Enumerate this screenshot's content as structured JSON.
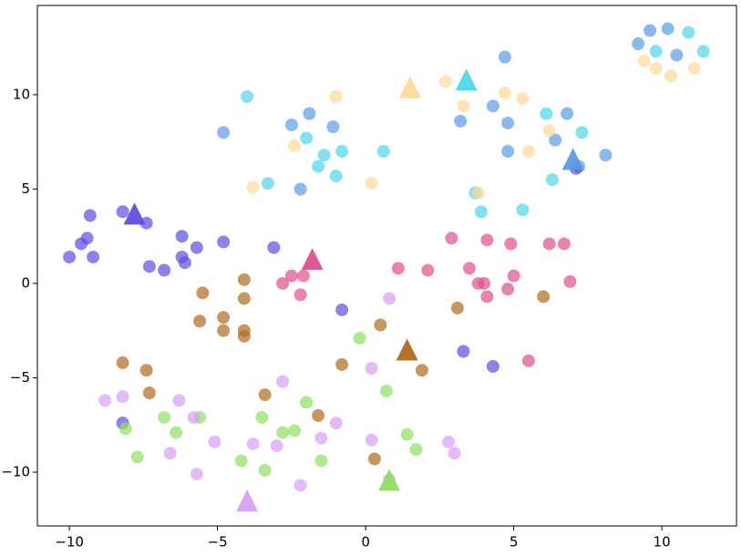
{
  "chart_data": {
    "type": "scatter",
    "xlim": [
      -11.08,
      12.52
    ],
    "ylim": [
      -12.85,
      14.73
    ],
    "xticks": [
      {
        "value": -10,
        "label": "−10"
      },
      {
        "value": -5,
        "label": "−5"
      },
      0,
      5,
      10
    ],
    "yticks": [
      {
        "value": -10,
        "label": "−10"
      },
      {
        "value": -5,
        "label": "−5"
      },
      0,
      5,
      10
    ],
    "series": [
      {
        "color": "#5b9be6",
        "centroid": [
          7.0,
          6.5
        ],
        "x": [
          9.6,
          9.2,
          10.2,
          10.5,
          4.7,
          -2.5,
          -1.9,
          -1.1,
          -4.8,
          3.2,
          4.3,
          4.8,
          6.8,
          6.4,
          4.8,
          8.1,
          7.2,
          -2.2
        ],
        "y": [
          13.4,
          12.7,
          13.5,
          12.1,
          12.0,
          8.4,
          9.0,
          8.3,
          8.0,
          8.6,
          9.4,
          8.5,
          9.0,
          7.6,
          7.0,
          6.8,
          6.2,
          5.0
        ]
      },
      {
        "color": "#4fd6e8",
        "centroid": [
          3.4,
          10.7
        ],
        "x": [
          -4.0,
          10.9,
          9.8,
          11.4,
          6.1,
          7.3,
          -2.0,
          -1.4,
          -0.8,
          0.6,
          -1.6,
          -1.0,
          -3.3,
          3.7,
          3.9,
          5.3,
          6.3
        ],
        "y": [
          9.9,
          13.3,
          12.3,
          12.3,
          9.0,
          8.0,
          7.7,
          6.8,
          7.0,
          7.0,
          6.2,
          5.7,
          5.3,
          4.8,
          3.8,
          3.9,
          5.5
        ]
      },
      {
        "color": "#ffd898",
        "centroid": [
          1.5,
          10.3
        ],
        "x": [
          9.4,
          9.8,
          10.3,
          11.1,
          2.7,
          4.7,
          5.3,
          -1.0,
          3.3,
          6.2,
          -2.4,
          5.5,
          -3.8,
          0.2,
          3.8
        ],
        "y": [
          11.8,
          11.4,
          11.0,
          11.4,
          10.7,
          10.1,
          9.8,
          9.9,
          9.4,
          8.1,
          7.3,
          7.0,
          5.1,
          5.3,
          4.8
        ]
      },
      {
        "color": "#5a4fe0",
        "centroid": [
          -7.8,
          3.6
        ],
        "x": [
          -10.0,
          -9.6,
          -9.4,
          -9.3,
          -9.2,
          -8.2,
          -7.4,
          -7.3,
          -6.8,
          -6.2,
          -6.2,
          -6.1,
          -5.7,
          -4.8,
          -3.1,
          -0.8,
          3.3,
          4.3,
          -8.2,
          7.1
        ],
        "y": [
          1.4,
          2.1,
          2.4,
          3.6,
          1.4,
          3.8,
          3.2,
          0.9,
          0.7,
          2.5,
          1.4,
          1.1,
          1.9,
          2.2,
          1.9,
          -1.4,
          -3.6,
          -4.4,
          -7.4,
          6.1
        ]
      },
      {
        "color": "#e04f8f",
        "centroid": [
          -1.8,
          1.2
        ],
        "x": [
          -2.8,
          -2.5,
          -2.1,
          -2.2,
          1.1,
          2.1,
          2.9,
          4.1,
          4.9,
          6.2,
          6.7,
          3.5,
          3.8,
          4.0,
          4.1,
          4.8,
          5.0,
          6.9,
          5.5
        ],
        "y": [
          0.0,
          0.4,
          0.4,
          -0.6,
          0.8,
          0.7,
          2.4,
          2.3,
          2.1,
          2.1,
          2.1,
          0.8,
          0.0,
          0.0,
          -0.7,
          -0.3,
          0.4,
          0.1,
          -4.1
        ]
      },
      {
        "color": "#b0691e",
        "centroid": [
          1.4,
          -3.6
        ],
        "x": [
          -4.1,
          -5.5,
          -4.1,
          -5.6,
          -4.8,
          -4.8,
          -4.1,
          -4.1,
          0.5,
          3.1,
          6.0,
          -8.2,
          -7.4,
          -7.3,
          -3.4,
          -1.6,
          -0.8,
          1.9,
          0.3
        ],
        "y": [
          0.2,
          -0.5,
          -0.8,
          -2.0,
          -1.8,
          -2.5,
          -2.5,
          -2.8,
          -2.2,
          -1.3,
          -0.7,
          -4.2,
          -4.6,
          -5.8,
          -5.9,
          -7.0,
          -4.3,
          -4.6,
          -9.3
        ]
      },
      {
        "color": "#8fdf5f",
        "centroid": [
          0.8,
          -10.5
        ],
        "x": [
          -0.2,
          0.7,
          -8.1,
          -6.8,
          -6.4,
          -5.6,
          -7.7,
          -3.5,
          -2.8,
          -2.4,
          -2.0,
          -4.2,
          -3.4,
          -1.5,
          1.4,
          1.7
        ],
        "y": [
          -2.9,
          -5.7,
          -7.7,
          -7.1,
          -7.9,
          -7.1,
          -9.2,
          -7.1,
          -7.9,
          -7.8,
          -6.3,
          -9.4,
          -9.9,
          -9.4,
          -8.0,
          -8.8
        ]
      },
      {
        "color": "#d99df6",
        "centroid": [
          -4.0,
          -11.6
        ],
        "x": [
          0.8,
          0.2,
          -2.8,
          -8.8,
          -8.2,
          -6.3,
          -5.8,
          -6.6,
          -5.7,
          -5.1,
          -3.8,
          -3.0,
          -1.5,
          -1.0,
          0.2,
          2.8,
          3.0,
          -2.2,
          0.8
        ],
        "y": [
          -0.8,
          -4.5,
          -5.2,
          -6.2,
          -6.0,
          -6.2,
          -7.1,
          -9.0,
          -10.1,
          -8.4,
          -8.5,
          -8.6,
          -8.2,
          -7.4,
          -8.3,
          -8.4,
          -9.0,
          -10.7,
          -10.4
        ]
      }
    ]
  }
}
